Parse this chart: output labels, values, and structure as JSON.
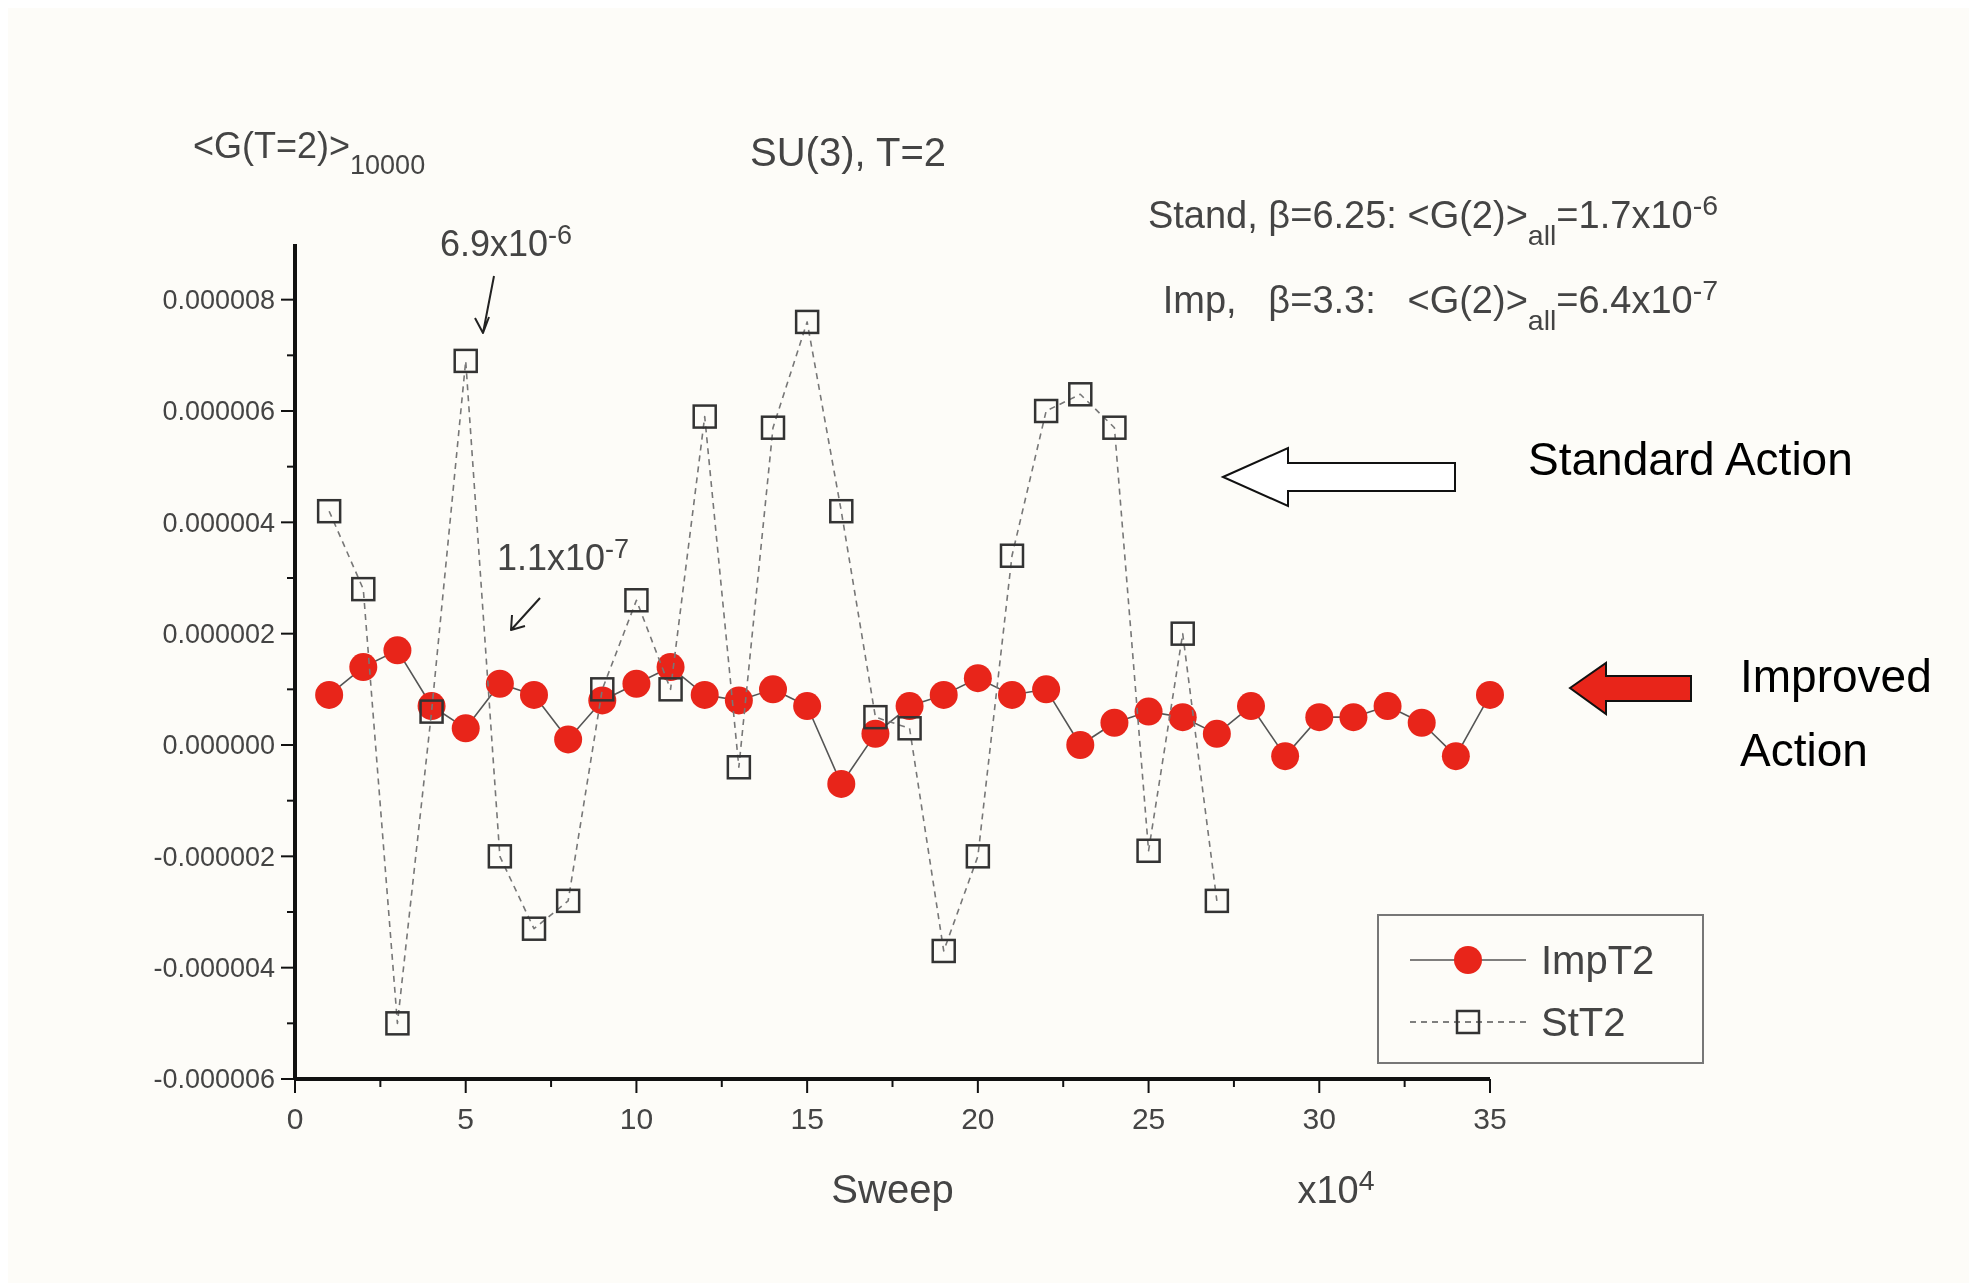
{
  "chart_data": {
    "type": "line",
    "title": "SU(3), T=2",
    "ylabel": "<G(T=2)>$_{10000}$",
    "xlabel": "Sweep",
    "xlim": [
      0,
      35
    ],
    "xticks": [
      0,
      {
        "value": 2.5,
        "label": null
      },
      5,
      {
        "value": 7.5,
        "label": null
      },
      10,
      {
        "value": 12.5,
        "label": null
      },
      15,
      {
        "value": 17.5,
        "label": null
      },
      20,
      {
        "value": 22.5,
        "label": null
      },
      25,
      {
        "value": 27.5,
        "label": null
      },
      30,
      {
        "value": 32.5,
        "label": null
      },
      35
    ],
    "ylim": [
      -6e-06,
      9e-06
    ],
    "yticks": [
      {
        "value": -6e-06,
        "label": "-0.000006"
      },
      {
        "value": -5e-06,
        "label": null
      },
      {
        "value": -4e-06,
        "label": "-0.000004"
      },
      {
        "value": -3e-06,
        "label": null
      },
      {
        "value": -2e-06,
        "label": "-0.000002"
      },
      {
        "value": -1e-06,
        "label": null
      },
      {
        "value": 0,
        "label": "0.000000"
      },
      {
        "value": 1e-06,
        "label": null
      },
      {
        "value": 2e-06,
        "label": "0.000002"
      },
      {
        "value": 3e-06,
        "label": null
      },
      {
        "value": 4e-06,
        "label": "0.000004"
      },
      {
        "value": 5e-06,
        "label": null
      },
      {
        "value": 6e-06,
        "label": "0.000006"
      },
      {
        "value": 7e-06,
        "label": null
      },
      {
        "value": 8e-06,
        "label": "0.000008"
      }
    ],
    "grid": false,
    "legend": "bottom right",
    "x": [
      1,
      2,
      3,
      4,
      5,
      6,
      7,
      8,
      9,
      10,
      11,
      12,
      13,
      14,
      15,
      16,
      17,
      18,
      19,
      20,
      21,
      22,
      23,
      24,
      25,
      26,
      27,
      28,
      29,
      30,
      31,
      32,
      33,
      34,
      35
    ],
    "series": [
      {
        "name": "ImpT2",
        "color": "#e8251a",
        "marker": "circle",
        "line_style": "solid",
        "values": [
          9e-07,
          1.4e-06,
          1.7e-06,
          7e-07,
          3e-07,
          1.1e-06,
          9e-07,
          1e-07,
          8e-07,
          1.1e-06,
          1.4e-06,
          9e-07,
          8e-07,
          1e-06,
          7e-07,
          -7e-07,
          2e-07,
          7e-07,
          9e-07,
          1.2e-06,
          9e-07,
          1e-06,
          0,
          4e-07,
          6e-07,
          5e-07,
          2e-07,
          7e-07,
          -2e-07,
          5e-07,
          5e-07,
          7e-07,
          4e-07,
          -2e-07,
          9e-07
        ]
      },
      {
        "name": "StT2",
        "color": "#333333",
        "marker": "square",
        "line_style": "dashed",
        "x": [
          1,
          2,
          3,
          4,
          5,
          6,
          7,
          8,
          9,
          10,
          11,
          12,
          13,
          14,
          15,
          16,
          17,
          18,
          19,
          20,
          21,
          22,
          23,
          24,
          25,
          26,
          27
        ],
        "values": [
          4.2e-06,
          2.8e-06,
          -5e-06,
          6e-07,
          6.9e-06,
          -2e-06,
          -3.3e-06,
          -2.8e-06,
          1e-06,
          2.6e-06,
          1e-06,
          5.9e-06,
          -4e-07,
          5.7e-06,
          7.6e-06,
          4.2e-06,
          5e-07,
          3e-07,
          -3.7e-06,
          -2e-06,
          3.4e-06,
          6e-06,
          6.3e-06,
          5.7e-06,
          -1.9e-06,
          2e-06,
          -2.8e-06
        ]
      }
    ],
    "annotations": [
      "6.9x10$^{-6}$",
      "1.1x10$^{-7}$",
      "Stand, β=6.25: <G(2)>$_{all}$=1.7x10$^{-6}$",
      "Imp,   β=3.3:   <G(2)>$_{all}$=6.4x10$^{-7}$",
      "x10$^{4}$",
      "Standard Action",
      "Improved Action"
    ]
  }
}
